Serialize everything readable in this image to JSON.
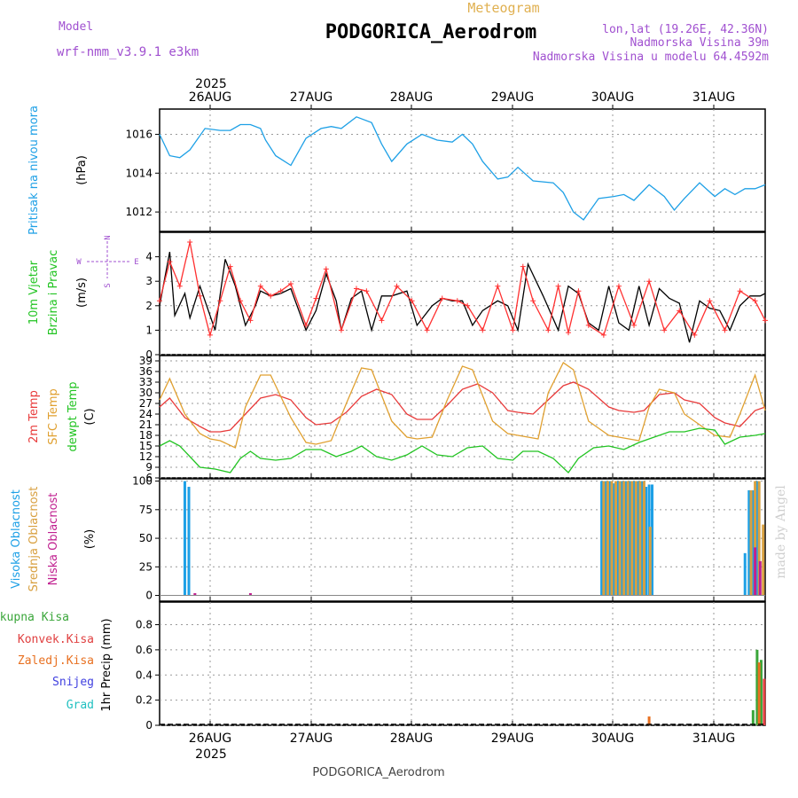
{
  "header": {
    "title": "PODGORICA_Aerodrom",
    "subtitle": "Meteogram",
    "model_label": "Model",
    "model_name": "wrf-nmm_v3.9.1 e3km",
    "lonlat": "lon,lat (19.26E, 42.36N)",
    "elevation": "Nadmorska Visina 39m",
    "model_elevation": "Nadmorska Visina u modelu 64.4592m",
    "footer": "PODGORICA_Aerodrom",
    "watermark": "made by Angel"
  },
  "colors": {
    "pressure": "#1ea0e6",
    "wind_speed": "#000000",
    "gust": "#ff3030",
    "temp2m": "#e83a3a",
    "sfc_temp": "#e0a030",
    "dewpoint": "#22c422",
    "high_cloud": "#1ea0e6",
    "mid_cloud": "#d8a040",
    "low_cloud": "#c02090",
    "precip_total": "#3aa63a",
    "precip_conv": "#e04040",
    "precip_frozen": "#e87020",
    "snow": "#4040e0",
    "hail": "#20c0c0",
    "labels_purple": "#a050d0"
  },
  "chart_data": [
    {
      "type": "line",
      "id": "pressure",
      "title": "Pritisak na nivou mora",
      "ylabel": "(hPa)",
      "ylim": [
        1011,
        1017.3
      ],
      "yticks": [
        1012,
        1014,
        1016
      ],
      "xlim": [
        0,
        6
      ],
      "x_categories": [
        "26AUG",
        "27AUG",
        "28AUG",
        "29AUG",
        "30AUG",
        "31AUG"
      ],
      "x_year": "2025",
      "series": [
        {
          "name": "Pritisak na nivou mora",
          "color": "#1ea0e6",
          "x": [
            0,
            0.1,
            0.2,
            0.3,
            0.45,
            0.6,
            0.7,
            0.8,
            0.9,
            1.0,
            1.05,
            1.15,
            1.3,
            1.45,
            1.6,
            1.7,
            1.8,
            1.95,
            2.1,
            2.2,
            2.3,
            2.45,
            2.6,
            2.75,
            2.9,
            3.0,
            3.1,
            3.2,
            3.35,
            3.45,
            3.55,
            3.7,
            3.9,
            4.0,
            4.1,
            4.2,
            4.35,
            4.5,
            4.6,
            4.7,
            4.85,
            5.0,
            5.1,
            5.2,
            5.35,
            5.5,
            5.6,
            5.7,
            5.8,
            5.9,
            6.0
          ],
          "y": [
            1016.0,
            1014.9,
            1014.8,
            1015.2,
            1016.3,
            1016.2,
            1016.2,
            1016.5,
            1016.5,
            1016.3,
            1015.7,
            1014.9,
            1014.4,
            1015.8,
            1016.3,
            1016.4,
            1016.3,
            1016.9,
            1016.6,
            1015.5,
            1014.6,
            1015.5,
            1016.0,
            1015.7,
            1015.6,
            1016.0,
            1015.5,
            1014.6,
            1013.7,
            1013.8,
            1014.3,
            1013.6,
            1013.5,
            1013.0,
            1012.0,
            1011.6,
            1012.7,
            1012.8,
            1012.9,
            1012.6,
            1013.4,
            1012.8,
            1012.1,
            1012.7,
            1013.5,
            1012.8,
            1013.2,
            1012.9,
            1013.2,
            1013.2,
            1013.4
          ]
        }
      ]
    },
    {
      "type": "line",
      "id": "wind",
      "title": "10m Vjetar Brzina i Pravac",
      "ylabel": "(m/s)",
      "ylim": [
        0,
        5
      ],
      "yticks": [
        0,
        1,
        2,
        3,
        4
      ],
      "compass": {
        "n": "N",
        "s": "S",
        "w": "W",
        "e": "E"
      },
      "series": [
        {
          "name": "Brzina",
          "color": "#000000",
          "x": [
            0,
            0.1,
            0.15,
            0.25,
            0.3,
            0.4,
            0.55,
            0.65,
            0.75,
            0.85,
            0.95,
            1.0,
            1.1,
            1.2,
            1.3,
            1.45,
            1.55,
            1.65,
            1.75,
            1.8,
            1.9,
            2.0,
            2.1,
            2.2,
            2.3,
            2.45,
            2.55,
            2.7,
            2.8,
            2.9,
            3.0,
            3.1,
            3.2,
            3.35,
            3.45,
            3.55,
            3.65,
            3.8,
            3.95,
            4.05,
            4.15,
            4.25,
            4.35,
            4.45,
            4.55,
            4.65,
            4.75,
            4.85,
            4.95,
            5.05,
            5.15,
            5.25,
            5.35,
            5.45,
            5.55,
            5.65,
            5.75,
            5.85,
            5.95,
            6.0
          ],
          "y": [
            2.0,
            4.2,
            1.6,
            2.5,
            1.5,
            2.8,
            1.0,
            3.9,
            2.8,
            1.2,
            2.0,
            2.6,
            2.4,
            2.5,
            2.7,
            1.0,
            1.8,
            3.3,
            2.2,
            1.0,
            2.3,
            2.6,
            1.0,
            2.4,
            2.4,
            2.6,
            1.2,
            2.0,
            2.3,
            2.2,
            2.2,
            1.2,
            1.8,
            2.2,
            2.0,
            1.0,
            3.7,
            2.4,
            1.0,
            2.8,
            2.5,
            1.3,
            1.0,
            2.8,
            1.3,
            1.0,
            2.8,
            1.2,
            2.7,
            2.3,
            2.1,
            0.5,
            2.2,
            1.9,
            1.8,
            1.0,
            2.0,
            2.4,
            2.4,
            2.5
          ]
        },
        {
          "name": "Udar",
          "color": "#ff3030",
          "x": [
            0,
            0.1,
            0.2,
            0.3,
            0.4,
            0.5,
            0.6,
            0.7,
            0.8,
            0.9,
            1.0,
            1.1,
            1.2,
            1.3,
            1.45,
            1.55,
            1.65,
            1.8,
            1.95,
            2.05,
            2.2,
            2.35,
            2.5,
            2.65,
            2.8,
            2.95,
            3.05,
            3.2,
            3.35,
            3.5,
            3.6,
            3.7,
            3.85,
            3.95,
            4.05,
            4.15,
            4.25,
            4.4,
            4.55,
            4.7,
            4.85,
            5.0,
            5.15,
            5.3,
            5.45,
            5.6,
            5.75,
            5.9,
            6.0
          ],
          "y": [
            2.2,
            3.8,
            2.8,
            4.6,
            2.4,
            0.8,
            2.2,
            3.6,
            2.2,
            1.4,
            2.8,
            2.4,
            2.6,
            2.9,
            1.2,
            2.3,
            3.5,
            1.0,
            2.7,
            2.6,
            1.4,
            2.8,
            2.2,
            1.0,
            2.3,
            2.2,
            2.0,
            1.0,
            2.8,
            1.0,
            3.6,
            2.2,
            1.0,
            2.8,
            0.9,
            2.6,
            1.2,
            0.8,
            2.8,
            1.2,
            3.0,
            1.0,
            1.8,
            0.8,
            2.2,
            1.0,
            2.6,
            2.2,
            1.4
          ]
        }
      ]
    },
    {
      "type": "line",
      "id": "temperature",
      "title": "2m Temp / SFC Temp / dewpt Temp",
      "ylabel": "(C)",
      "legend": [
        "2m Temp",
        "SFC Temp",
        "dewpt Temp"
      ],
      "ylim": [
        6,
        40.5
      ],
      "yticks": [
        6,
        9,
        12,
        15,
        18,
        21,
        24,
        27,
        30,
        33,
        36,
        39
      ],
      "series": [
        {
          "name": "2m Temp",
          "color": "#e83a3a",
          "x": [
            0,
            0.1,
            0.25,
            0.4,
            0.5,
            0.6,
            0.7,
            0.85,
            1.0,
            1.15,
            1.3,
            1.45,
            1.55,
            1.7,
            1.85,
            2.0,
            2.15,
            2.3,
            2.45,
            2.55,
            2.7,
            2.85,
            3.0,
            3.15,
            3.3,
            3.45,
            3.55,
            3.7,
            3.85,
            4.0,
            4.1,
            4.25,
            4.45,
            4.55,
            4.7,
            4.8,
            4.95,
            5.1,
            5.2,
            5.35,
            5.5,
            5.6,
            5.75,
            5.9,
            6.0
          ],
          "y": [
            26,
            28.5,
            23,
            20.5,
            19,
            19,
            19.5,
            24,
            28.5,
            29.5,
            28,
            23,
            21,
            21.5,
            24.5,
            29,
            31,
            29.5,
            24,
            22.5,
            22.5,
            26.5,
            31,
            32.5,
            30,
            25,
            24.5,
            24,
            28,
            32,
            33,
            31,
            26,
            25,
            24.5,
            25,
            29.5,
            30,
            28,
            27,
            23,
            21.5,
            20.5,
            25,
            26
          ]
        },
        {
          "name": "SFC Temp",
          "color": "#e0a030",
          "x": [
            0,
            0.1,
            0.25,
            0.4,
            0.5,
            0.6,
            0.75,
            0.85,
            1.0,
            1.1,
            1.3,
            1.45,
            1.55,
            1.7,
            1.85,
            2.0,
            2.1,
            2.3,
            2.45,
            2.55,
            2.7,
            2.85,
            3.0,
            3.1,
            3.3,
            3.45,
            3.55,
            3.75,
            3.85,
            4.0,
            4.1,
            4.25,
            4.45,
            4.55,
            4.75,
            4.85,
            4.95,
            5.1,
            5.2,
            5.35,
            5.5,
            5.65,
            5.75,
            5.9,
            6.0
          ],
          "y": [
            28,
            34,
            24,
            18.5,
            17,
            16.5,
            14.5,
            26,
            35,
            35,
            23,
            16,
            15.5,
            16.5,
            27,
            37,
            36.5,
            22,
            17.5,
            17,
            17.5,
            28,
            37.5,
            36.5,
            22,
            18.5,
            18,
            17,
            30,
            38.5,
            36.5,
            22,
            18,
            17.5,
            16.5,
            26,
            31,
            30,
            24,
            21,
            18,
            17.5,
            24,
            35,
            25
          ]
        },
        {
          "name": "dewpt Temp",
          "color": "#22c422",
          "x": [
            0,
            0.1,
            0.2,
            0.3,
            0.4,
            0.55,
            0.7,
            0.8,
            0.9,
            1.0,
            1.15,
            1.3,
            1.45,
            1.6,
            1.75,
            1.9,
            2.0,
            2.15,
            2.3,
            2.45,
            2.6,
            2.75,
            2.9,
            3.05,
            3.2,
            3.35,
            3.5,
            3.6,
            3.75,
            3.9,
            4.05,
            4.15,
            4.3,
            4.45,
            4.6,
            4.75,
            4.9,
            5.05,
            5.2,
            5.35,
            5.5,
            5.6,
            5.75,
            5.9,
            6.0
          ],
          "y": [
            15,
            16.5,
            15,
            12,
            9,
            8.5,
            7.5,
            11.5,
            13.5,
            11.5,
            11,
            11.5,
            14,
            14,
            12,
            13.5,
            15,
            12,
            11,
            12.5,
            15,
            12.5,
            12,
            14.5,
            15,
            11.5,
            11,
            13.5,
            13.5,
            11.5,
            7.5,
            11.5,
            14.5,
            15,
            14,
            16,
            17.5,
            19,
            19,
            20,
            19.5,
            15.5,
            17.5,
            18,
            18.5
          ]
        }
      ]
    },
    {
      "type": "bar",
      "id": "clouds",
      "title": "Visoka Oblacnost / Srednja Oblacnost / Niska Oblacnost",
      "ylabel": "(%)",
      "legend": [
        "Visoka Oblacnost",
        "Srednja Oblacnost",
        "Niska Oblacnost"
      ],
      "ylim": [
        -5,
        102
      ],
      "yticks": [
        0,
        25,
        50,
        75,
        100
      ],
      "series": [
        {
          "name": "Visoka Oblacnost",
          "color": "#1ea0e6",
          "x": [
            0.25,
            0.29,
            4.38,
            4.42,
            4.46,
            4.5,
            4.54,
            4.58,
            4.62,
            4.66,
            4.7,
            4.74,
            4.78,
            4.82,
            4.85,
            4.88,
            5.8,
            5.84,
            5.88,
            5.92
          ],
          "y": [
            100,
            95,
            100,
            100,
            100,
            98,
            100,
            100,
            100,
            100,
            100,
            100,
            100,
            95,
            97,
            97,
            37,
            92,
            92,
            100
          ]
        },
        {
          "name": "Srednja Oblacnost",
          "color": "#d8a040",
          "x": [
            4.4,
            4.44,
            4.48,
            4.52,
            4.56,
            4.6,
            4.64,
            4.68,
            4.72,
            4.76,
            4.8,
            4.86,
            5.86,
            5.9,
            5.94,
            5.98
          ],
          "y": [
            100,
            100,
            100,
            100,
            100,
            100,
            100,
            100,
            100,
            100,
            100,
            60,
            92,
            100,
            100,
            62
          ]
        },
        {
          "name": "Niska Oblacnost",
          "color": "#c02090",
          "x": [
            0.35,
            0.9,
            5.9,
            5.95
          ],
          "y": [
            2,
            2,
            42,
            30
          ]
        }
      ]
    },
    {
      "type": "bar",
      "id": "precip",
      "title": "1hr Precip",
      "ylabel": "1hr Precip (mm)",
      "legend": [
        "Ukupna Kisa",
        "Konvek.Kisa",
        "Zaledj.Kisa",
        "Snijeg",
        "Grad"
      ],
      "ylim": [
        0,
        0.98
      ],
      "yticks": [
        0,
        0.2,
        0.4,
        0.6,
        0.8
      ],
      "series": [
        {
          "name": "Ukupna Kisa",
          "color": "#3aa63a",
          "x": [
            5.88,
            5.92,
            5.96
          ],
          "y": [
            0.12,
            0.6,
            0.52
          ]
        },
        {
          "name": "Konvek.Kisa",
          "color": "#e04040",
          "x": [
            5.99
          ],
          "y": [
            0.37
          ]
        },
        {
          "name": "Zaledj.Kisa",
          "color": "#e87020",
          "x": [
            4.85,
            5.94
          ],
          "y": [
            0.07,
            0.5
          ]
        }
      ]
    }
  ]
}
